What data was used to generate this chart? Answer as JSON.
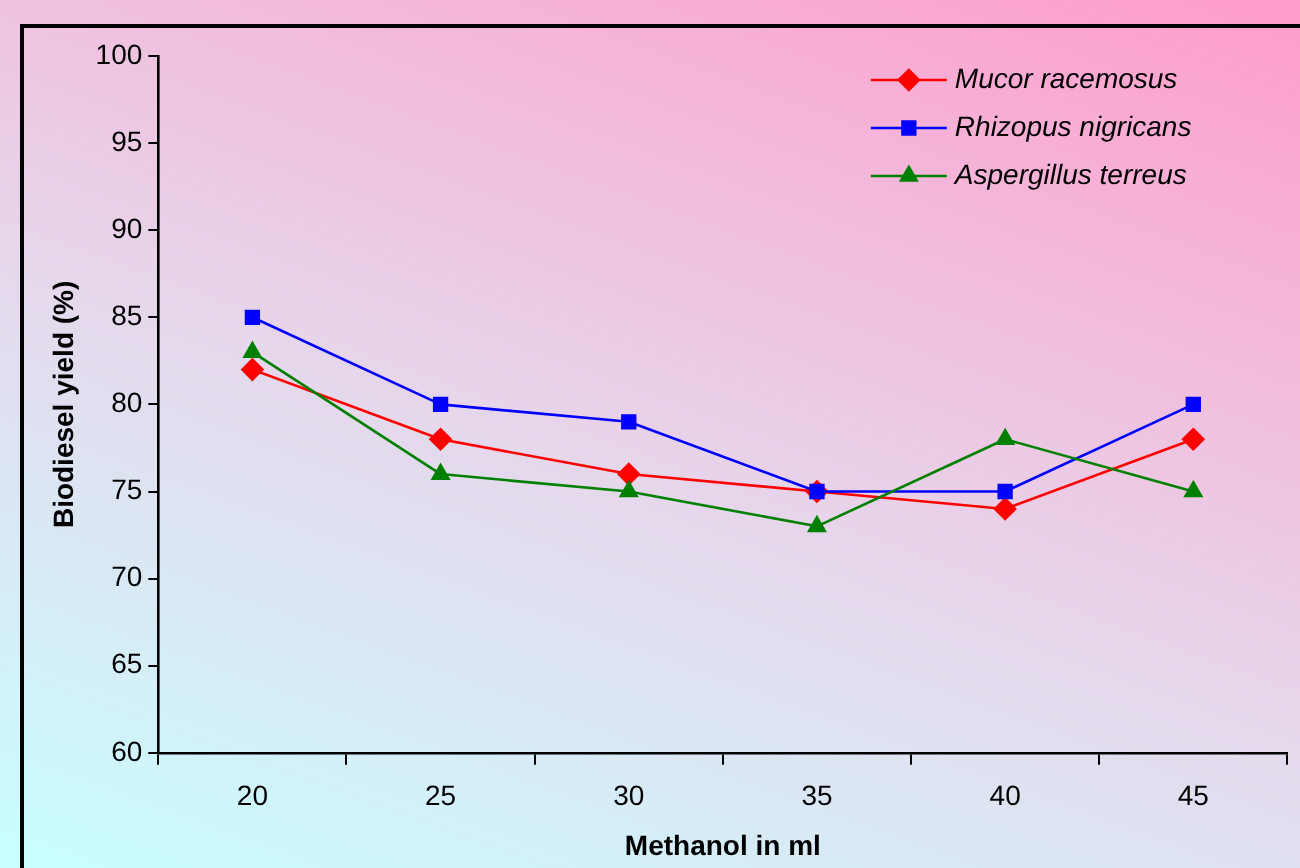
{
  "chart_data": {
    "type": "line",
    "xlabel": "Methanol in ml",
    "ylabel": "Biodiesel yield (%)",
    "categories": [
      "20",
      "25",
      "30",
      "35",
      "40",
      "45"
    ],
    "series": [
      {
        "name": "Mucor racemosus",
        "color": "#ff0000",
        "marker": "diamond",
        "values": [
          82,
          78,
          76,
          75,
          74,
          78
        ]
      },
      {
        "name": "Rhizopus nigricans",
        "color": "#0000ff",
        "marker": "square",
        "values": [
          85,
          80,
          79,
          75,
          75,
          80
        ]
      },
      {
        "name": "Aspergillus terreus",
        "color": "#008000",
        "marker": "triangle",
        "values": [
          83,
          76,
          75,
          73,
          78,
          75
        ]
      }
    ],
    "ylim": [
      60,
      100
    ],
    "yticks": [
      60,
      65,
      70,
      75,
      80,
      85,
      90,
      95,
      100
    ],
    "grid": false,
    "legend": "top right",
    "line_style": "solid"
  }
}
